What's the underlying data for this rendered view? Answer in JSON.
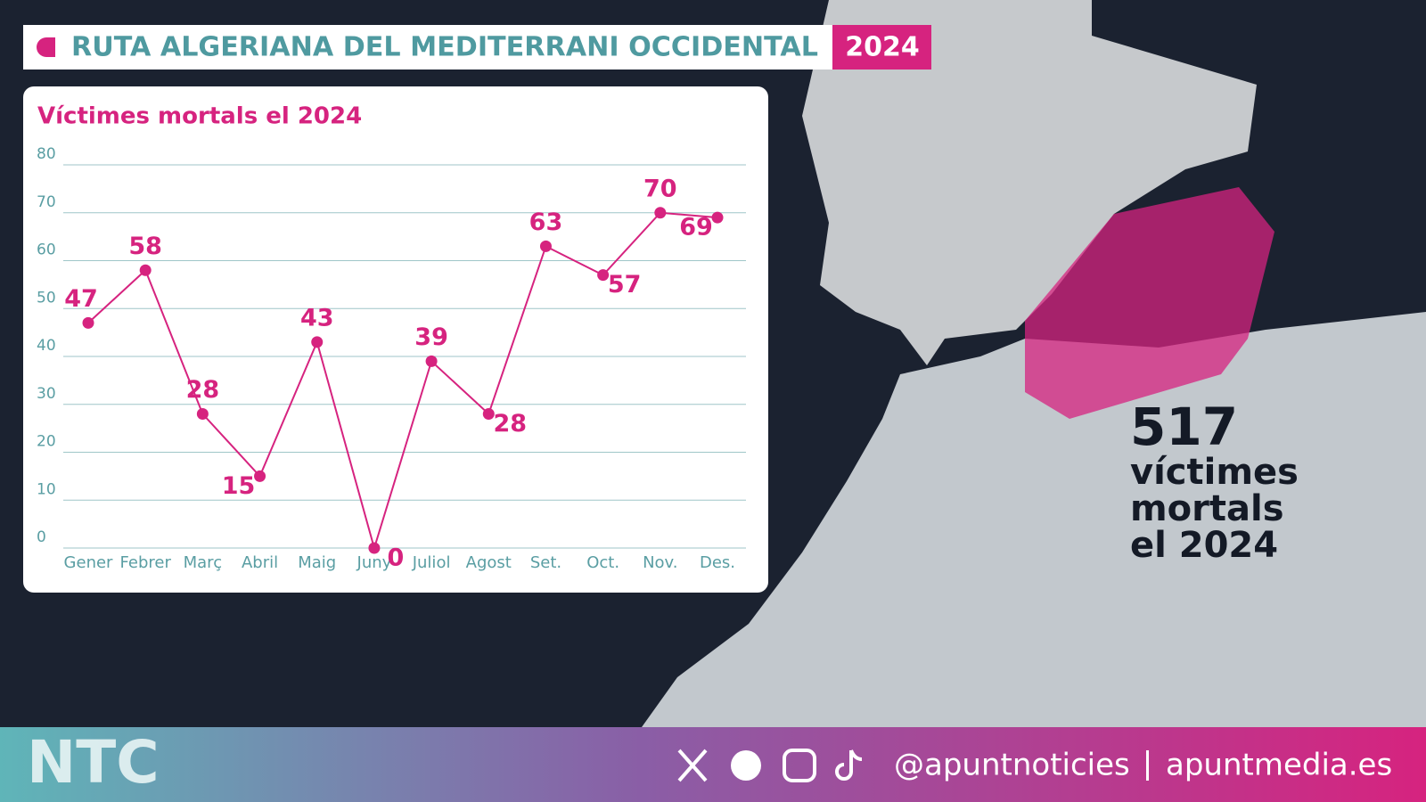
{
  "header": {
    "title": "RUTA ALGERIANA DEL MEDITERRANI OCCIDENTAL",
    "year": "2024"
  },
  "chart_data": {
    "type": "line",
    "title": "Víctimes mortals el 2024",
    "categories": [
      "Gener",
      "Febrer",
      "Març",
      "Abril",
      "Maig",
      "Juny",
      "Juliol",
      "Agost",
      "Set.",
      "Oct.",
      "Nov.",
      "Des."
    ],
    "values": [
      47,
      58,
      28,
      15,
      43,
      0,
      39,
      28,
      63,
      57,
      70,
      69
    ],
    "color": "#d6237f",
    "ylim": [
      0,
      80
    ],
    "yticks": [
      0,
      10,
      20,
      30,
      40,
      50,
      60,
      70,
      80
    ],
    "grid": true
  },
  "annotation": {
    "total": 517,
    "lines": [
      "víctimes",
      "mortals",
      "el 2024"
    ]
  },
  "footer": {
    "logo": "NTC",
    "handle": "@apuntnoticies",
    "site": "apuntmedia.es"
  }
}
